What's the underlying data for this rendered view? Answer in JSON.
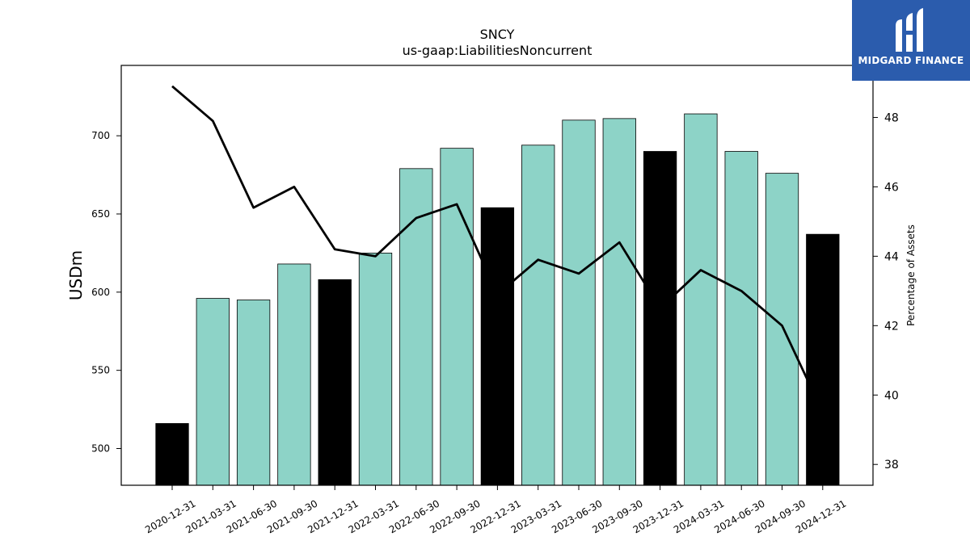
{
  "brand": {
    "name": "MIDGARD FINANCE",
    "bg_color": "#2b5cad",
    "icon": "midgard-logo-icon"
  },
  "chart_data": {
    "type": "bar",
    "title": "SNCY",
    "subtitle": "us-gaap:LiabilitiesNoncurrent",
    "ylabel": "USDm",
    "ylabel_right": "Percentage of Assets",
    "categories": [
      "2020-12-31",
      "2021-03-31",
      "2021-06-30",
      "2021-09-30",
      "2021-12-31",
      "2022-03-31",
      "2022-06-30",
      "2022-09-30",
      "2022-12-31",
      "2023-03-31",
      "2023-06-30",
      "2023-09-30",
      "2023-12-31",
      "2024-03-31",
      "2024-06-30",
      "2024-09-30",
      "2024-12-31"
    ],
    "series": [
      {
        "type": "bar",
        "values": [
          516,
          596,
          595,
          618,
          608,
          625,
          679,
          692,
          654,
          694,
          710,
          711,
          690,
          714,
          690,
          676,
          637
        ],
        "colors": [
          "#000000",
          "#8dd3c7",
          "#8dd3c7",
          "#8dd3c7",
          "#000000",
          "#8dd3c7",
          "#8dd3c7",
          "#8dd3c7",
          "#000000",
          "#8dd3c7",
          "#8dd3c7",
          "#8dd3c7",
          "#000000",
          "#8dd3c7",
          "#8dd3c7",
          "#8dd3c7",
          "#000000"
        ]
      },
      {
        "type": "line",
        "axis": "right",
        "color": "#000000",
        "values": [
          48.9,
          47.9,
          45.4,
          46.0,
          44.2,
          44.0,
          45.1,
          45.5,
          42.9,
          43.9,
          43.5,
          44.4,
          42.5,
          43.6,
          43.0,
          42.0,
          39.5
        ]
      }
    ],
    "ylim": [
      476.5,
      745
    ],
    "ylim_right": [
      37.4,
      49.5
    ],
    "yticks": [
      500,
      550,
      600,
      650,
      700
    ],
    "yticks_right": [
      38,
      40,
      42,
      44,
      46,
      48
    ],
    "grid": false,
    "legend": "none"
  }
}
